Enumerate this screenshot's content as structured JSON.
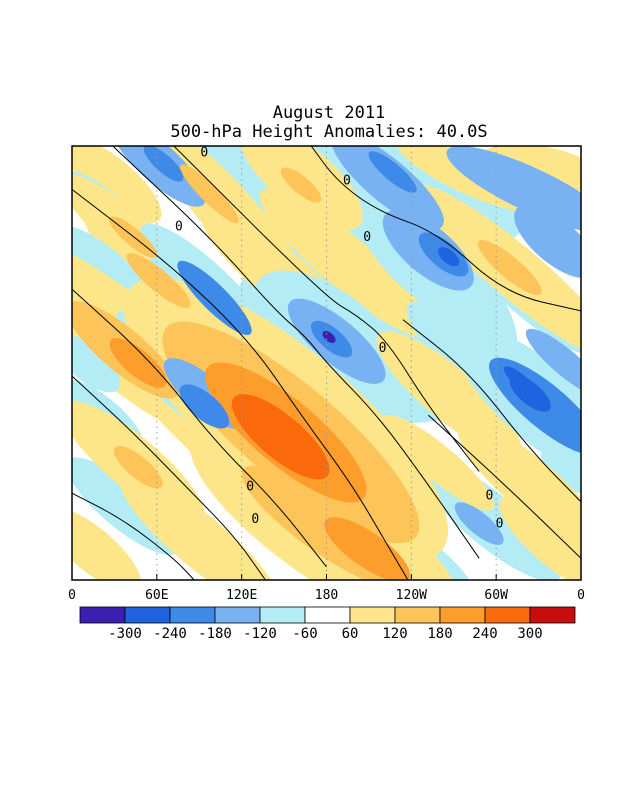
{
  "chart_data": {
    "type": "heatmap",
    "title": "August 2011",
    "subtitle": "500-hPa Height Anomalies: 40.0S",
    "x_ticks": [
      "0",
      "60E",
      "120E",
      "180",
      "120W",
      "60W",
      "0"
    ],
    "contour_label": "0",
    "colorbar": {
      "ticks": [
        "-300",
        "-240",
        "-180",
        "-120",
        "-60",
        "60",
        "120",
        "180",
        "240",
        "300"
      ],
      "colors": [
        "#3b1fb0",
        "#1f63e0",
        "#3d8ae8",
        "#78b2f2",
        "#b3ecf5",
        "#ffffff",
        "#fde68a",
        "#fdc45a",
        "#fc9d2c",
        "#fa6a0d",
        "#c80d0d"
      ]
    },
    "blobs": [
      {
        "cx": 0.17,
        "cy": 0.04,
        "len": 0.12,
        "wid": 0.045,
        "ang": 42,
        "v": -120
      },
      {
        "cx": 0.18,
        "cy": 0.04,
        "len": 0.05,
        "wid": 0.02,
        "ang": 42,
        "v": -180
      },
      {
        "cx": 0.08,
        "cy": 0.08,
        "len": 0.12,
        "wid": 0.05,
        "ang": 40,
        "v": 90
      },
      {
        "cx": 0.06,
        "cy": 0.14,
        "len": 0.1,
        "wid": 0.04,
        "ang": 40,
        "v": -90
      },
      {
        "cx": 0.1,
        "cy": 0.19,
        "len": 0.16,
        "wid": 0.05,
        "ang": 40,
        "v": 100
      },
      {
        "cx": 0.12,
        "cy": 0.21,
        "len": 0.06,
        "wid": 0.02,
        "ang": 40,
        "v": 150
      },
      {
        "cx": 0.28,
        "cy": 0.1,
        "len": 0.18,
        "wid": 0.05,
        "ang": 45,
        "v": 110
      },
      {
        "cx": 0.27,
        "cy": 0.11,
        "len": 0.08,
        "wid": 0.02,
        "ang": 45,
        "v": 160
      },
      {
        "cx": 0.34,
        "cy": 0.06,
        "len": 0.14,
        "wid": 0.05,
        "ang": 45,
        "v": -90
      },
      {
        "cx": 0.45,
        "cy": 0.07,
        "len": 0.15,
        "wid": 0.07,
        "ang": 40,
        "v": 110
      },
      {
        "cx": 0.45,
        "cy": 0.09,
        "len": 0.05,
        "wid": 0.02,
        "ang": 40,
        "v": 160
      },
      {
        "cx": 0.6,
        "cy": 0.1,
        "len": 0.3,
        "wid": 0.16,
        "ang": 10,
        "v": -70
      },
      {
        "cx": 0.62,
        "cy": 0.08,
        "len": 0.14,
        "wid": 0.05,
        "ang": 40,
        "v": -120
      },
      {
        "cx": 0.63,
        "cy": 0.06,
        "len": 0.06,
        "wid": 0.02,
        "ang": 40,
        "v": -180
      },
      {
        "cx": 0.78,
        "cy": 0.06,
        "len": 0.16,
        "wid": 0.05,
        "ang": 25,
        "v": 100
      },
      {
        "cx": 0.9,
        "cy": 0.1,
        "len": 0.18,
        "wid": 0.05,
        "ang": 25,
        "v": -120
      },
      {
        "cx": 0.92,
        "cy": 0.05,
        "len": 0.12,
        "wid": 0.05,
        "ang": 10,
        "v": 90
      },
      {
        "cx": 0.68,
        "cy": 0.25,
        "len": 0.16,
        "wid": 0.08,
        "ang": 45,
        "v": -100
      },
      {
        "cx": 0.7,
        "cy": 0.24,
        "len": 0.11,
        "wid": 0.055,
        "ang": 40,
        "v": -160
      },
      {
        "cx": 0.73,
        "cy": 0.25,
        "len": 0.06,
        "wid": 0.03,
        "ang": 40,
        "v": -220
      },
      {
        "cx": 0.74,
        "cy": 0.255,
        "len": 0.025,
        "wid": 0.015,
        "ang": 40,
        "v": -280
      },
      {
        "cx": 0.87,
        "cy": 0.29,
        "len": 0.26,
        "wid": 0.06,
        "ang": 40,
        "v": 110
      },
      {
        "cx": 0.86,
        "cy": 0.28,
        "len": 0.08,
        "wid": 0.025,
        "ang": 40,
        "v": 170
      },
      {
        "cx": 0.95,
        "cy": 0.22,
        "len": 0.1,
        "wid": 0.05,
        "ang": 40,
        "v": -120
      },
      {
        "cx": 0.9,
        "cy": 0.36,
        "len": 0.15,
        "wid": 0.04,
        "ang": 40,
        "v": -100
      },
      {
        "cx": 0.32,
        "cy": 0.17,
        "len": 0.18,
        "wid": 0.06,
        "ang": 45,
        "v": 100
      },
      {
        "cx": 0.18,
        "cy": 0.3,
        "len": 0.2,
        "wid": 0.06,
        "ang": 40,
        "v": 100
      },
      {
        "cx": 0.17,
        "cy": 0.31,
        "len": 0.08,
        "wid": 0.025,
        "ang": 40,
        "v": 160
      },
      {
        "cx": 0.07,
        "cy": 0.28,
        "len": 0.12,
        "wid": 0.04,
        "ang": 40,
        "v": -100
      },
      {
        "cx": 0.28,
        "cy": 0.35,
        "len": 0.2,
        "wid": 0.06,
        "ang": 45,
        "v": -110
      },
      {
        "cx": 0.28,
        "cy": 0.35,
        "len": 0.1,
        "wid": 0.03,
        "ang": 45,
        "v": -180
      },
      {
        "cx": 0.41,
        "cy": 0.3,
        "len": 0.2,
        "wid": 0.06,
        "ang": 40,
        "v": 90
      },
      {
        "cx": 0.54,
        "cy": 0.27,
        "len": 0.22,
        "wid": 0.06,
        "ang": 40,
        "v": 90
      },
      {
        "cx": 0.6,
        "cy": 0.41,
        "len": 0.28,
        "wid": 0.22,
        "ang": 15,
        "v": -70
      },
      {
        "cx": 0.52,
        "cy": 0.46,
        "len": 0.2,
        "wid": 0.11,
        "ang": 40,
        "v": -100
      },
      {
        "cx": 0.52,
        "cy": 0.45,
        "len": 0.12,
        "wid": 0.05,
        "ang": 40,
        "v": -160
      },
      {
        "cx": 0.51,
        "cy": 0.445,
        "len": 0.05,
        "wid": 0.025,
        "ang": 40,
        "v": -220
      },
      {
        "cx": 0.505,
        "cy": 0.44,
        "len": 0.015,
        "wid": 0.01,
        "ang": 40,
        "v": -300
      },
      {
        "cx": 0.58,
        "cy": 0.69,
        "len": 0.09,
        "wid": 0.05,
        "ang": 30,
        "v": -100
      },
      {
        "cx": 0.8,
        "cy": 0.5,
        "len": 0.18,
        "wid": 0.06,
        "ang": 40,
        "v": -100
      },
      {
        "cx": 0.74,
        "cy": 0.57,
        "len": 0.18,
        "wid": 0.06,
        "ang": 40,
        "v": 100
      },
      {
        "cx": 0.93,
        "cy": 0.6,
        "len": 0.22,
        "wid": 0.09,
        "ang": 40,
        "v": -110
      },
      {
        "cx": 0.93,
        "cy": 0.6,
        "len": 0.14,
        "wid": 0.05,
        "ang": 40,
        "v": -180
      },
      {
        "cx": 0.9,
        "cy": 0.57,
        "len": 0.05,
        "wid": 0.025,
        "ang": 40,
        "v": -250
      },
      {
        "cx": 0.88,
        "cy": 0.54,
        "len": 0.04,
        "wid": 0.015,
        "ang": 40,
        "v": -280
      },
      {
        "cx": 0.97,
        "cy": 0.5,
        "len": 0.1,
        "wid": 0.03,
        "ang": 40,
        "v": -140
      },
      {
        "cx": 0.1,
        "cy": 0.45,
        "len": 0.3,
        "wid": 0.1,
        "ang": 40,
        "v": 100
      },
      {
        "cx": 0.1,
        "cy": 0.47,
        "len": 0.14,
        "wid": 0.05,
        "ang": 40,
        "v": 160
      },
      {
        "cx": 0.13,
        "cy": 0.5,
        "len": 0.07,
        "wid": 0.03,
        "ang": 40,
        "v": 200
      },
      {
        "cx": 0.26,
        "cy": 0.55,
        "len": 0.22,
        "wid": 0.09,
        "ang": 40,
        "v": -110
      },
      {
        "cx": 0.26,
        "cy": 0.57,
        "len": 0.1,
        "wid": 0.04,
        "ang": 40,
        "v": -170
      },
      {
        "cx": 0.26,
        "cy": 0.6,
        "len": 0.06,
        "wid": 0.03,
        "ang": 40,
        "v": -210
      },
      {
        "cx": 0.06,
        "cy": 0.62,
        "len": 0.1,
        "wid": 0.04,
        "ang": 40,
        "v": -100
      },
      {
        "cx": 0.03,
        "cy": 0.5,
        "len": 0.08,
        "wid": 0.04,
        "ang": 40,
        "v": -100
      },
      {
        "cx": 0.42,
        "cy": 0.63,
        "len": 0.4,
        "wid": 0.16,
        "ang": 40,
        "v": 110
      },
      {
        "cx": 0.43,
        "cy": 0.66,
        "len": 0.32,
        "wid": 0.11,
        "ang": 40,
        "v": 160
      },
      {
        "cx": 0.42,
        "cy": 0.66,
        "len": 0.2,
        "wid": 0.075,
        "ang": 40,
        "v": 200
      },
      {
        "cx": 0.41,
        "cy": 0.67,
        "len": 0.12,
        "wid": 0.05,
        "ang": 40,
        "v": 250
      },
      {
        "cx": 0.12,
        "cy": 0.73,
        "len": 0.18,
        "wid": 0.06,
        "ang": 40,
        "v": 100
      },
      {
        "cx": 0.13,
        "cy": 0.74,
        "len": 0.06,
        "wid": 0.025,
        "ang": 40,
        "v": 160
      },
      {
        "cx": 0.1,
        "cy": 0.83,
        "len": 0.14,
        "wid": 0.05,
        "ang": 40,
        "v": -80
      },
      {
        "cx": 0.35,
        "cy": 0.76,
        "len": 0.3,
        "wid": 0.05,
        "ang": 40,
        "v": 100
      },
      {
        "cx": 0.5,
        "cy": 0.88,
        "len": 0.32,
        "wid": 0.12,
        "ang": 35,
        "v": 110
      },
      {
        "cx": 0.5,
        "cy": 0.88,
        "len": 0.2,
        "wid": 0.06,
        "ang": 35,
        "v": 160
      },
      {
        "cx": 0.58,
        "cy": 0.93,
        "len": 0.1,
        "wid": 0.04,
        "ang": 35,
        "v": 200
      },
      {
        "cx": 0.72,
        "cy": 0.73,
        "len": 0.14,
        "wid": 0.04,
        "ang": 40,
        "v": 110
      },
      {
        "cx": 0.82,
        "cy": 0.86,
        "len": 0.18,
        "wid": 0.06,
        "ang": 40,
        "v": -100
      },
      {
        "cx": 0.8,
        "cy": 0.87,
        "len": 0.06,
        "wid": 0.025,
        "ang": 40,
        "v": -160
      },
      {
        "cx": 0.9,
        "cy": 0.78,
        "len": 0.18,
        "wid": 0.06,
        "ang": 40,
        "v": 110
      },
      {
        "cx": 0.95,
        "cy": 0.92,
        "len": 0.14,
        "wid": 0.05,
        "ang": 40,
        "v": 100
      },
      {
        "cx": 0.04,
        "cy": 0.93,
        "len": 0.12,
        "wid": 0.05,
        "ang": 40,
        "v": 100
      },
      {
        "cx": 0.25,
        "cy": 0.91,
        "len": 0.2,
        "wid": 0.06,
        "ang": 40,
        "v": 110
      },
      {
        "cx": 0.7,
        "cy": 0.97,
        "len": 0.12,
        "wid": 0.05,
        "ang": 40,
        "v": -100
      },
      {
        "cx": 0.97,
        "cy": 0.75,
        "len": 0.06,
        "wid": 0.03,
        "ang": 40,
        "v": -100
      }
    ],
    "contours": [
      [
        [
          0.2,
          0.0
        ],
        [
          0.5,
          0.35
        ],
        [
          0.56,
          0.39
        ],
        [
          0.62,
          0.45
        ],
        [
          0.7,
          0.6
        ],
        [
          0.8,
          0.75
        ]
      ],
      [
        [
          0.08,
          0.0
        ],
        [
          0.28,
          0.22
        ],
        [
          0.4,
          0.38
        ],
        [
          0.46,
          0.44
        ],
        [
          0.5,
          0.5
        ],
        [
          0.6,
          0.62
        ],
        [
          0.7,
          0.78
        ],
        [
          0.8,
          0.95
        ]
      ],
      [
        [
          0.47,
          0.0
        ],
        [
          0.52,
          0.08
        ],
        [
          0.6,
          0.15
        ],
        [
          0.72,
          0.2
        ],
        [
          0.85,
          0.34
        ],
        [
          1.0,
          0.38
        ]
      ],
      [
        [
          0.0,
          0.1
        ],
        [
          0.2,
          0.28
        ],
        [
          0.35,
          0.45
        ],
        [
          0.45,
          0.62
        ],
        [
          0.55,
          0.78
        ],
        [
          0.62,
          0.92
        ],
        [
          0.66,
          1.0
        ]
      ],
      [
        [
          0.0,
          0.33
        ],
        [
          0.16,
          0.5
        ],
        [
          0.28,
          0.68
        ],
        [
          0.4,
          0.82
        ],
        [
          0.5,
          0.97
        ]
      ],
      [
        [
          0.0,
          0.53
        ],
        [
          0.12,
          0.66
        ],
        [
          0.22,
          0.78
        ],
        [
          0.32,
          0.9
        ],
        [
          0.38,
          1.0
        ]
      ],
      [
        [
          0.0,
          0.8
        ],
        [
          0.1,
          0.86
        ],
        [
          0.2,
          0.95
        ],
        [
          0.24,
          1.0
        ]
      ],
      [
        [
          0.65,
          0.4
        ],
        [
          0.78,
          0.52
        ],
        [
          0.9,
          0.7
        ],
        [
          1.0,
          0.82
        ]
      ],
      [
        [
          0.7,
          0.62
        ],
        [
          0.85,
          0.78
        ],
        [
          1.0,
          0.95
        ]
      ]
    ],
    "contour_labels": [
      {
        "x": 0.26,
        "y": 0.015
      },
      {
        "x": 0.54,
        "y": 0.08
      },
      {
        "x": 0.21,
        "y": 0.185
      },
      {
        "x": 0.58,
        "y": 0.21
      },
      {
        "x": 0.61,
        "y": 0.465
      },
      {
        "x": 0.35,
        "y": 0.785
      },
      {
        "x": 0.36,
        "y": 0.86
      },
      {
        "x": 0.82,
        "y": 0.805
      },
      {
        "x": 0.84,
        "y": 0.87
      }
    ]
  }
}
